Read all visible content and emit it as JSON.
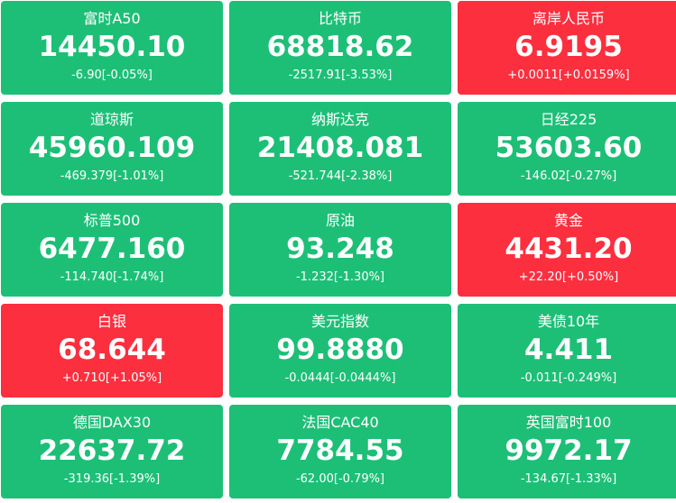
{
  "colors": {
    "down": "#1dbf77",
    "up": "#fc2f3f",
    "text": "#ffffff"
  },
  "tiles": [
    {
      "name": "富时A50",
      "price": "14450.10",
      "change": "-6.90[-0.05%]",
      "trend": "down"
    },
    {
      "name": "比特币",
      "price": "68818.62",
      "change": "-2517.91[-3.53%]",
      "trend": "down"
    },
    {
      "name": "离岸人民币",
      "price": "6.9195",
      "change": "+0.0011[+0.0159%]",
      "trend": "up"
    },
    {
      "name": "道琼斯",
      "price": "45960.109",
      "change": "-469.379[-1.01%]",
      "trend": "down"
    },
    {
      "name": "纳斯达克",
      "price": "21408.081",
      "change": "-521.744[-2.38%]",
      "trend": "down"
    },
    {
      "name": "日经225",
      "price": "53603.60",
      "change": "-146.02[-0.27%]",
      "trend": "down"
    },
    {
      "name": "标普500",
      "price": "6477.160",
      "change": "-114.740[-1.74%]",
      "trend": "down"
    },
    {
      "name": "原油",
      "price": "93.248",
      "change": "-1.232[-1.30%]",
      "trend": "down"
    },
    {
      "name": "黄金",
      "price": "4431.20",
      "change": "+22.20[+0.50%]",
      "trend": "up"
    },
    {
      "name": "白银",
      "price": "68.644",
      "change": "+0.710[+1.05%]",
      "trend": "up"
    },
    {
      "name": "美元指数",
      "price": "99.8880",
      "change": "-0.0444[-0.0444%]",
      "trend": "down"
    },
    {
      "name": "美债10年",
      "price": "4.411",
      "change": "-0.011[-0.249%]",
      "trend": "down"
    },
    {
      "name": "德国DAX30",
      "price": "22637.72",
      "change": "-319.36[-1.39%]",
      "trend": "down"
    },
    {
      "name": "法国CAC40",
      "price": "7784.55",
      "change": "-62.00[-0.79%]",
      "trend": "down"
    },
    {
      "name": "英国富时100",
      "price": "9972.17",
      "change": "-134.67[-1.33%]",
      "trend": "down"
    }
  ]
}
